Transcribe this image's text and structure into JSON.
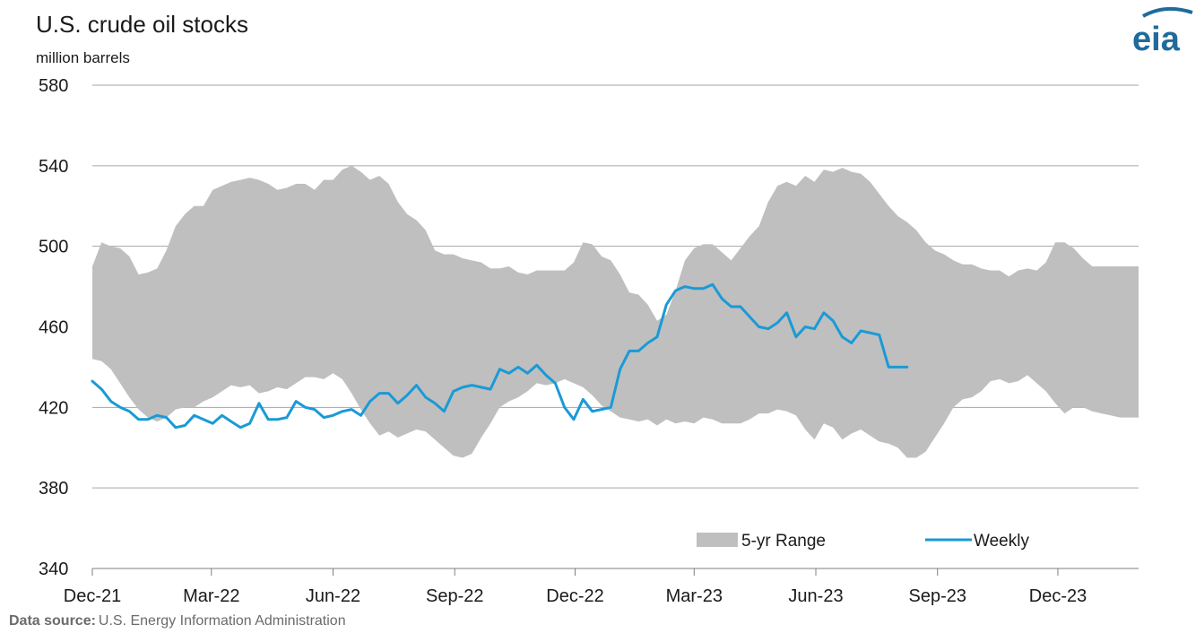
{
  "chart_data": {
    "type": "area",
    "title": "U.S. crude oil stocks",
    "ylabel": "million barrels",
    "ylim": [
      340,
      580
    ],
    "yticks": [
      340,
      380,
      420,
      460,
      500,
      540,
      580
    ],
    "x_range": [
      "2021-12-01",
      "2024-01-31"
    ],
    "xticks": [
      {
        "label": "Dec-21",
        "date": "2021-12-01"
      },
      {
        "label": "Mar-22",
        "date": "2022-03-01"
      },
      {
        "label": "Jun-22",
        "date": "2022-06-01"
      },
      {
        "label": "Sep-22",
        "date": "2022-09-01"
      },
      {
        "label": "Dec-22",
        "date": "2022-12-01"
      },
      {
        "label": "Mar-23",
        "date": "2023-03-01"
      },
      {
        "label": "Jun-23",
        "date": "2023-06-01"
      },
      {
        "label": "Sep-23",
        "date": "2023-09-01"
      },
      {
        "label": "Dec-23",
        "date": "2023-12-01"
      }
    ],
    "grid": "horizontal",
    "legend_position": "bottom-right",
    "range_color": "#bfbfbf",
    "weekly_color": "#1a9ad6",
    "range_series": {
      "name": "5-yr Range",
      "x": [
        "2021-12-01",
        "2021-12-08",
        "2021-12-15",
        "2021-12-22",
        "2021-12-29",
        "2022-01-05",
        "2022-01-12",
        "2022-01-19",
        "2022-01-26",
        "2022-02-02",
        "2022-02-09",
        "2022-02-16",
        "2022-02-23",
        "2022-03-02",
        "2022-03-09",
        "2022-03-16",
        "2022-03-23",
        "2022-03-30",
        "2022-04-06",
        "2022-04-13",
        "2022-04-20",
        "2022-04-27",
        "2022-05-04",
        "2022-05-11",
        "2022-05-18",
        "2022-05-25",
        "2022-06-01",
        "2022-06-08",
        "2022-06-15",
        "2022-06-22",
        "2022-06-29",
        "2022-07-06",
        "2022-07-13",
        "2022-07-20",
        "2022-07-27",
        "2022-08-03",
        "2022-08-10",
        "2022-08-17",
        "2022-08-24",
        "2022-08-31",
        "2022-09-07",
        "2022-09-14",
        "2022-09-21",
        "2022-09-28",
        "2022-10-05",
        "2022-10-12",
        "2022-10-19",
        "2022-10-26",
        "2022-11-02",
        "2022-11-09",
        "2022-11-16",
        "2022-11-23",
        "2022-11-30",
        "2022-12-07",
        "2022-12-14",
        "2022-12-21",
        "2022-12-28",
        "2023-01-04",
        "2023-01-11",
        "2023-01-18",
        "2023-01-25",
        "2023-02-01",
        "2023-02-08",
        "2023-02-15",
        "2023-02-22",
        "2023-03-01",
        "2023-03-08",
        "2023-03-15",
        "2023-03-22",
        "2023-03-29",
        "2023-04-05",
        "2023-04-12",
        "2023-04-19",
        "2023-04-26",
        "2023-05-03",
        "2023-05-10",
        "2023-05-17",
        "2023-05-24",
        "2023-05-31",
        "2023-06-07",
        "2023-06-14",
        "2023-06-21",
        "2023-06-28",
        "2023-07-05",
        "2023-07-12",
        "2023-07-19",
        "2023-07-26",
        "2023-08-02",
        "2023-08-09",
        "2023-08-16",
        "2023-08-23",
        "2023-08-30",
        "2023-09-06",
        "2023-09-13",
        "2023-09-20",
        "2023-09-27",
        "2023-10-04",
        "2023-10-11",
        "2023-10-18",
        "2023-10-25",
        "2023-11-01",
        "2023-11-08",
        "2023-11-15",
        "2023-11-22",
        "2023-11-29",
        "2023-12-06",
        "2023-12-13",
        "2023-12-20",
        "2023-12-27",
        "2024-01-03",
        "2024-01-10",
        "2024-01-17",
        "2024-01-24",
        "2024-01-31"
      ],
      "low": [
        444,
        443,
        439,
        432,
        425,
        419,
        415,
        413,
        415,
        419,
        420,
        420,
        423,
        425,
        428,
        431,
        430,
        431,
        427,
        428,
        430,
        429,
        432,
        435,
        435,
        434,
        437,
        434,
        427,
        419,
        412,
        406,
        408,
        405,
        407,
        409,
        408,
        404,
        400,
        396,
        395,
        397,
        405,
        412,
        420,
        423,
        425,
        428,
        432,
        431,
        432,
        434,
        432,
        430,
        426,
        421,
        418,
        415,
        414,
        413,
        414,
        411,
        414,
        412,
        413,
        412,
        415,
        414,
        412,
        412,
        412,
        414,
        417,
        417,
        419,
        418,
        416,
        409,
        404,
        412,
        410,
        404,
        407,
        409,
        406,
        403,
        402,
        400,
        395,
        395,
        398,
        405,
        412,
        420,
        424,
        425,
        428,
        433,
        434,
        432,
        433,
        436,
        432,
        428,
        422,
        417,
        420,
        420,
        418,
        417,
        416,
        415,
        415,
        415
      ],
      "high": [
        490,
        502,
        500,
        499,
        495,
        486,
        487,
        489,
        498,
        510,
        516,
        520,
        520,
        528,
        530,
        532,
        533,
        534,
        533,
        531,
        528,
        529,
        531,
        531,
        528,
        533,
        533,
        538,
        540,
        537,
        533,
        535,
        531,
        522,
        516,
        513,
        508,
        498,
        496,
        496,
        494,
        493,
        492,
        489,
        489,
        490,
        487,
        486,
        488,
        488,
        488,
        488,
        492,
        502,
        501,
        495,
        493,
        486,
        477,
        476,
        471,
        463,
        466,
        478,
        493,
        499,
        501,
        501,
        497,
        493,
        499,
        505,
        510,
        522,
        530,
        532,
        530,
        535,
        532,
        538,
        537,
        539,
        537,
        536,
        532,
        526,
        520,
        515,
        512,
        508,
        502,
        498,
        496,
        493,
        491,
        491,
        489,
        488,
        488,
        485,
        488,
        489,
        488,
        492,
        502,
        502,
        499,
        494,
        490,
        490,
        490,
        490,
        490,
        490
      ]
    },
    "weekly_series": {
      "name": "Weekly",
      "x": [
        "2021-12-01",
        "2021-12-08",
        "2021-12-15",
        "2021-12-22",
        "2021-12-29",
        "2022-01-05",
        "2022-01-12",
        "2022-01-19",
        "2022-01-26",
        "2022-02-02",
        "2022-02-09",
        "2022-02-16",
        "2022-02-23",
        "2022-03-02",
        "2022-03-09",
        "2022-03-16",
        "2022-03-23",
        "2022-03-30",
        "2022-04-06",
        "2022-04-13",
        "2022-04-20",
        "2022-04-27",
        "2022-05-04",
        "2022-05-11",
        "2022-05-18",
        "2022-05-25",
        "2022-06-01",
        "2022-06-08",
        "2022-06-15",
        "2022-06-22",
        "2022-06-29",
        "2022-07-06",
        "2022-07-13",
        "2022-07-20",
        "2022-07-27",
        "2022-08-03",
        "2022-08-10",
        "2022-08-17",
        "2022-08-24",
        "2022-08-31",
        "2022-09-07",
        "2022-09-14",
        "2022-09-21",
        "2022-09-28",
        "2022-10-05",
        "2022-10-12",
        "2022-10-19",
        "2022-10-26",
        "2022-11-02",
        "2022-11-09",
        "2022-11-16",
        "2022-11-23",
        "2022-11-30",
        "2022-12-07",
        "2022-12-14",
        "2022-12-21",
        "2022-12-28",
        "2023-01-04",
        "2023-01-11",
        "2023-01-18",
        "2023-01-25",
        "2023-02-01",
        "2023-02-08",
        "2023-02-15",
        "2023-02-22",
        "2023-03-01",
        "2023-03-08",
        "2023-03-15",
        "2023-03-22",
        "2023-03-29",
        "2023-04-05",
        "2023-04-12",
        "2023-04-19",
        "2023-04-26",
        "2023-05-03",
        "2023-05-10",
        "2023-05-17",
        "2023-05-24",
        "2023-05-31",
        "2023-06-07",
        "2023-06-14",
        "2023-06-21",
        "2023-06-28",
        "2023-07-05",
        "2023-07-12",
        "2023-07-19",
        "2023-07-26",
        "2023-08-02",
        "2023-08-09"
      ],
      "values": [
        433,
        429,
        423,
        420,
        418,
        414,
        414,
        416,
        415,
        410,
        411,
        416,
        414,
        412,
        416,
        413,
        410,
        412,
        422,
        414,
        414,
        415,
        423,
        420,
        419,
        415,
        416,
        418,
        419,
        416,
        423,
        427,
        427,
        422,
        426,
        431,
        425,
        422,
        418,
        428,
        430,
        431,
        430,
        429,
        439,
        437,
        440,
        437,
        441,
        436,
        432,
        420,
        414,
        424,
        418,
        419,
        420,
        439,
        448,
        448,
        452,
        455,
        471,
        478,
        480,
        479,
        479,
        481,
        474,
        470,
        470,
        465,
        460,
        459,
        462,
        467,
        455,
        460,
        459,
        467,
        463,
        455,
        452,
        458,
        457,
        456,
        440,
        440,
        440
      ]
    },
    "legend": [
      {
        "label": "5-yr Range"
      },
      {
        "label": "Weekly"
      }
    ]
  },
  "source": {
    "label": "Data source:",
    "text": "U.S. Energy Information Administration"
  },
  "logo": {
    "text": "eia",
    "color": "#1f6c9c"
  }
}
